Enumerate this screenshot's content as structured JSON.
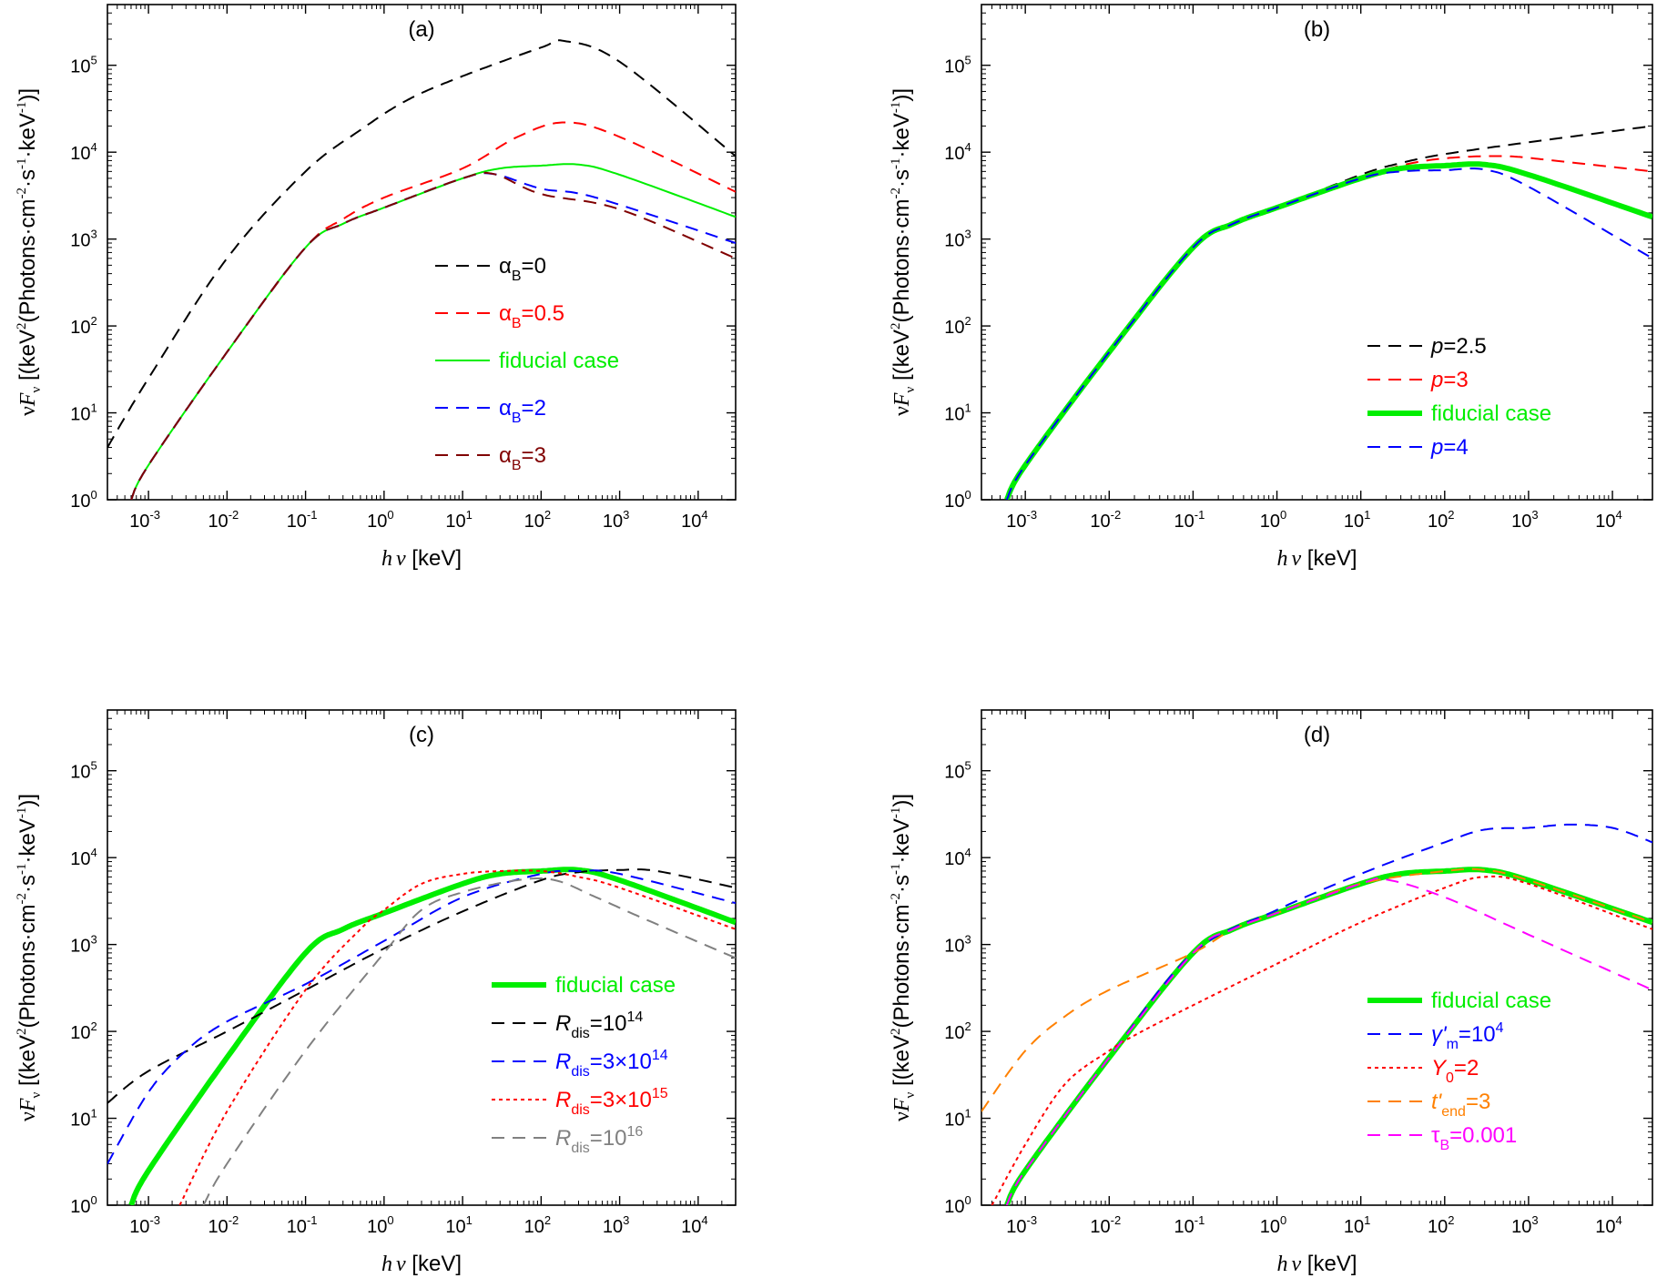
{
  "chart_data": [
    {
      "type": "line",
      "title": "(a)",
      "xlabel": "hν [keV]",
      "ylabel": "νFν [(keV²(Photons·cm⁻²·s⁻¹·keV⁻¹)]",
      "xscale": "log",
      "yscale": "log",
      "xlim": [
        0.0003,
        30000
      ],
      "ylim": [
        1,
        500000
      ],
      "xticks": [
        "10-3",
        "10-2",
        "10-1",
        "100",
        "101",
        "102",
        "103",
        "104"
      ],
      "yticks": [
        "100",
        "101",
        "102",
        "103",
        "104",
        "105"
      ],
      "legend_position": "center-right",
      "series": [
        {
          "name": "αB=0",
          "label": "α",
          "sub": "B",
          "suffix": "=0",
          "color": "#000000",
          "dash": "dashed",
          "width": 2,
          "x": [
            0.0003,
            0.001,
            0.01,
            0.1,
            0.5,
            2,
            10,
            100,
            200,
            1000,
            30000
          ],
          "y": [
            4,
            25,
            600,
            6000,
            18000,
            40000,
            75000,
            160000,
            190000,
            110000,
            9000
          ]
        },
        {
          "name": "αB=0.5",
          "label": "α",
          "sub": "B",
          "suffix": "=0.5",
          "color": "#ff0000",
          "dash": "dashed",
          "width": 2,
          "x": [
            0.0006,
            0.001,
            0.01,
            0.1,
            0.3,
            1,
            10,
            50,
            200,
            1000,
            30000
          ],
          "y": [
            1,
            2.5,
            50,
            800,
            1700,
            3000,
            6500,
            15000,
            22000,
            15000,
            3500
          ]
        },
        {
          "name": "fiducial case",
          "label": "fiducial case",
          "sub": "",
          "suffix": "",
          "color": "#00ee00",
          "dash": "solid",
          "width": 2,
          "x": [
            0.0006,
            0.001,
            0.01,
            0.1,
            0.3,
            1,
            10,
            30,
            100,
            300,
            1000,
            30000
          ],
          "y": [
            1,
            2.5,
            50,
            800,
            1500,
            2300,
            5000,
            6500,
            7000,
            7200,
            5500,
            1800
          ]
        },
        {
          "name": "αB=2",
          "label": "α",
          "sub": "B",
          "suffix": "=2",
          "color": "#0000ff",
          "dash": "dashed",
          "width": 2,
          "x": [
            0.0006,
            0.001,
            0.01,
            0.1,
            0.3,
            1,
            10,
            25,
            100,
            500,
            30000
          ],
          "y": [
            1,
            2.5,
            50,
            800,
            1500,
            2300,
            5000,
            5600,
            3800,
            3000,
            900
          ]
        },
        {
          "name": "αB=3",
          "label": "α",
          "sub": "B",
          "suffix": "=3",
          "color": "#800000",
          "dash": "dashed",
          "width": 2,
          "x": [
            0.0006,
            0.001,
            0.01,
            0.1,
            0.3,
            1,
            10,
            25,
            100,
            1000,
            30000
          ],
          "y": [
            1,
            2.5,
            50,
            800,
            1500,
            2300,
            5000,
            5600,
            3300,
            2200,
            600
          ]
        }
      ]
    },
    {
      "type": "line",
      "title": "(b)",
      "xlabel": "hν [keV]",
      "ylabel": "νFν [(keV²(Photons·cm⁻²·s⁻¹·keV⁻¹)]",
      "xscale": "log",
      "yscale": "log",
      "xlim": [
        0.0003,
        30000
      ],
      "ylim": [
        1,
        500000
      ],
      "xticks": [
        "10-3",
        "10-2",
        "10-1",
        "100",
        "101",
        "102",
        "103",
        "104"
      ],
      "yticks": [
        "100",
        "101",
        "102",
        "103",
        "104",
        "105"
      ],
      "legend_position": "center-right",
      "series": [
        {
          "name": "p=2.5",
          "label": "p",
          "sub": "",
          "suffix": "=2.5",
          "color": "#000000",
          "dash": "dashed",
          "width": 2,
          "italic": true,
          "x": [
            0.0006,
            0.001,
            0.01,
            0.1,
            0.3,
            1,
            10,
            30,
            100,
            1000,
            30000
          ],
          "y": [
            1,
            2.5,
            50,
            800,
            1500,
            2300,
            5500,
            7500,
            9500,
            13000,
            20000
          ]
        },
        {
          "name": "p=3",
          "label": "p",
          "sub": "",
          "suffix": "=3",
          "color": "#ff0000",
          "dash": "dashed",
          "width": 2,
          "italic": true,
          "x": [
            0.0006,
            0.001,
            0.01,
            0.1,
            0.3,
            1,
            10,
            30,
            100,
            500,
            2000,
            30000
          ],
          "y": [
            1,
            2.5,
            50,
            800,
            1500,
            2300,
            5000,
            7000,
            8500,
            9000,
            8000,
            6000
          ]
        },
        {
          "name": "fiducial case",
          "label": "fiducial case",
          "sub": "",
          "suffix": "",
          "color": "#00ee00",
          "dash": "solid",
          "width": 6,
          "x": [
            0.0006,
            0.001,
            0.01,
            0.1,
            0.3,
            1,
            10,
            30,
            100,
            300,
            1000,
            30000
          ],
          "y": [
            1,
            2.5,
            50,
            800,
            1500,
            2300,
            5000,
            6500,
            7000,
            7200,
            5500,
            1800
          ]
        },
        {
          "name": "p=4",
          "label": "p",
          "sub": "",
          "suffix": "=4",
          "color": "#0000ff",
          "dash": "dashed",
          "width": 2,
          "italic": true,
          "x": [
            0.0006,
            0.001,
            0.01,
            0.1,
            0.3,
            1,
            10,
            30,
            100,
            300,
            1000,
            30000
          ],
          "y": [
            1,
            2.5,
            50,
            800,
            1500,
            2300,
            5000,
            6000,
            6200,
            6300,
            4000,
            600
          ]
        }
      ]
    },
    {
      "type": "line",
      "title": "(c)",
      "xlabel": "hν [keV]",
      "ylabel": "νFν [(keV²(Photons·cm⁻²·s⁻¹·keV⁻¹)]",
      "xscale": "log",
      "yscale": "log",
      "xlim": [
        0.0003,
        30000
      ],
      "ylim": [
        1,
        500000
      ],
      "xticks": [
        "10-3",
        "10-2",
        "10-1",
        "100",
        "101",
        "102",
        "103",
        "104"
      ],
      "yticks": [
        "100",
        "101",
        "102",
        "103",
        "104",
        "105"
      ],
      "legend_position": "lower-right",
      "series": [
        {
          "name": "fiducial case",
          "label": "fiducial case",
          "sub": "",
          "suffix": "",
          "color": "#00ee00",
          "dash": "solid",
          "width": 6,
          "x": [
            0.0006,
            0.001,
            0.01,
            0.1,
            0.3,
            1,
            10,
            30,
            100,
            300,
            1000,
            30000
          ],
          "y": [
            1,
            2.5,
            50,
            800,
            1500,
            2300,
            5000,
            6500,
            7000,
            7200,
            5500,
            1800
          ]
        },
        {
          "name": "Rdis=10^14",
          "label": "R",
          "sub": "dis",
          "suffix": "=10",
          "sup": "14",
          "color": "#000000",
          "dash": "dashed",
          "width": 2,
          "italic": true,
          "x": [
            0.0003,
            0.001,
            0.01,
            0.1,
            1,
            10,
            100,
            300,
            1000,
            3000,
            30000
          ],
          "y": [
            15,
            35,
            100,
            300,
            900,
            2400,
            5500,
            6800,
            7200,
            7000,
            4500
          ]
        },
        {
          "name": "Rdis=3×10^14",
          "label": "R",
          "sub": "dis",
          "suffix": "=3×10",
          "sup": "14",
          "color": "#0000ff",
          "dash": "dashed",
          "width": 2,
          "italic": true,
          "x": [
            0.0003,
            0.001,
            0.003,
            0.01,
            0.1,
            1,
            10,
            100,
            300,
            1000,
            30000
          ],
          "y": [
            3,
            20,
            60,
            130,
            350,
            1100,
            3500,
            6500,
            7000,
            6500,
            3000
          ]
        },
        {
          "name": "Rdis=3×10^15",
          "label": "R",
          "sub": "dis",
          "suffix": "=3×10",
          "sup": "15",
          "color": "#ff0000",
          "dash": "dotted",
          "width": 2,
          "italic": true,
          "x": [
            0.0025,
            0.01,
            0.1,
            0.5,
            1,
            3,
            10,
            30,
            100,
            300,
            1000,
            30000
          ],
          "y": [
            1,
            12,
            300,
            1500,
            2500,
            5000,
            6500,
            7000,
            7000,
            6000,
            4500,
            1500
          ]
        },
        {
          "name": "Rdis=10^16",
          "label": "R",
          "sub": "dis",
          "suffix": "=10",
          "sup": "16",
          "color": "#808080",
          "dash": "dashed",
          "width": 2,
          "italic": true,
          "x": [
            0.005,
            0.01,
            0.1,
            1,
            3,
            10,
            50,
            150,
            500,
            2000,
            30000
          ],
          "y": [
            1,
            3,
            60,
            800,
            2500,
            4000,
            5500,
            5500,
            3500,
            2000,
            700
          ]
        }
      ]
    },
    {
      "type": "line",
      "title": "(d)",
      "xlabel": "hν [keV]",
      "ylabel": "νFν [(keV²(Photons·cm⁻²·s⁻¹·keV⁻¹)]",
      "xscale": "log",
      "yscale": "log",
      "xlim": [
        0.0003,
        30000
      ],
      "ylim": [
        1,
        500000
      ],
      "xticks": [
        "10-3",
        "10-2",
        "10-1",
        "100",
        "101",
        "102",
        "103",
        "104"
      ],
      "yticks": [
        "100",
        "101",
        "102",
        "103",
        "104",
        "105"
      ],
      "legend_position": "lower-right",
      "series": [
        {
          "name": "fiducial case",
          "label": "fiducial case",
          "sub": "",
          "suffix": "",
          "color": "#00ee00",
          "dash": "solid",
          "width": 6,
          "x": [
            0.0006,
            0.001,
            0.01,
            0.1,
            0.3,
            1,
            10,
            30,
            100,
            300,
            1000,
            30000
          ],
          "y": [
            1,
            2.5,
            50,
            800,
            1500,
            2300,
            5000,
            6500,
            7000,
            7200,
            5500,
            1800
          ]
        },
        {
          "name": "γ'm=10^4",
          "label": "γ'",
          "sub": "m",
          "suffix": "=10",
          "sup": "4",
          "color": "#0000ff",
          "dash": "dashed",
          "width": 2,
          "italic": true,
          "x": [
            0.0006,
            0.001,
            0.01,
            0.1,
            1,
            10,
            100,
            300,
            1000,
            3000,
            10000,
            30000
          ],
          "y": [
            1,
            2.5,
            50,
            800,
            2500,
            6500,
            15000,
            21000,
            22000,
            24000,
            22000,
            15000
          ]
        },
        {
          "name": "Y0=2",
          "label": "Y",
          "sub": "0",
          "suffix": "=2",
          "color": "#ff0000",
          "dash": "dotted",
          "width": 2,
          "italic": true,
          "x": [
            0.0004,
            0.001,
            0.003,
            0.01,
            0.02,
            0.1,
            1,
            10,
            100,
            300,
            1000,
            30000
          ],
          "y": [
            1,
            5,
            25,
            60,
            90,
            200,
            600,
            1800,
            4500,
            6000,
            5000,
            1500
          ]
        },
        {
          "name": "t'end=3",
          "label": "t'",
          "sub": "end",
          "suffix": "=3",
          "color": "#ff8000",
          "dash": "dashed",
          "width": 2,
          "italic": true,
          "x": [
            0.0003,
            0.001,
            0.003,
            0.01,
            0.1,
            0.3,
            1,
            10,
            100,
            300,
            1000,
            30000
          ],
          "y": [
            12,
            60,
            150,
            300,
            800,
            1500,
            2300,
            5000,
            7000,
            7200,
            5500,
            1800
          ]
        },
        {
          "name": "τB=0.001",
          "label": "τ",
          "sub": "B",
          "suffix": "=0.001",
          "color": "#ff00ff",
          "dash": "dashed",
          "width": 2,
          "italic": false,
          "x": [
            0.0006,
            0.001,
            0.01,
            0.1,
            0.3,
            1,
            10,
            20,
            100,
            1000,
            30000
          ],
          "y": [
            1,
            2.5,
            50,
            800,
            1500,
            2300,
            5000,
            5600,
            3500,
            1300,
            300
          ]
        }
      ]
    }
  ]
}
